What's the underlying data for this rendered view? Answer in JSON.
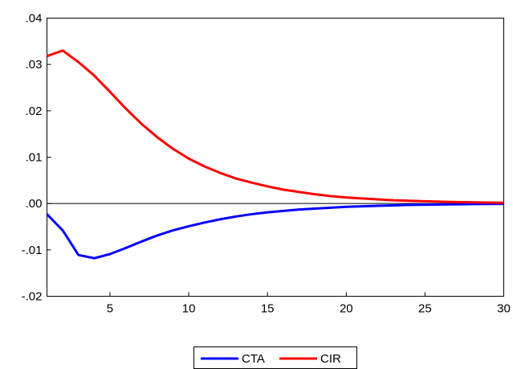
{
  "chart_data": {
    "type": "line",
    "title": "",
    "xlabel": "",
    "ylabel": "",
    "xlim": [
      1,
      30
    ],
    "ylim": [
      -0.02,
      0.04
    ],
    "x_ticks": [
      5,
      10,
      15,
      20,
      25,
      30
    ],
    "x_tick_labels": [
      "5",
      "10",
      "15",
      "20",
      "25",
      "30"
    ],
    "y_ticks": [
      -0.02,
      -0.01,
      0.0,
      0.01,
      0.02,
      0.03,
      0.04
    ],
    "y_tick_labels": [
      "-.02",
      "-.01",
      ".00",
      ".01",
      ".02",
      ".03",
      ".04"
    ],
    "zero_line": true,
    "grid": false,
    "legend_position": "bottom-center",
    "x": [
      1,
      2,
      3,
      4,
      5,
      6,
      7,
      8,
      9,
      10,
      11,
      12,
      13,
      14,
      15,
      16,
      17,
      18,
      19,
      20,
      21,
      22,
      23,
      24,
      25,
      26,
      27,
      28,
      29,
      30
    ],
    "series": [
      {
        "name": "CTA",
        "color": "#0000ff",
        "values": [
          -0.0023,
          -0.0058,
          -0.0111,
          -0.0118,
          -0.0109,
          -0.0096,
          -0.0082,
          -0.0069,
          -0.0058,
          -0.0049,
          -0.0041,
          -0.0034,
          -0.0028,
          -0.0023,
          -0.0019,
          -0.0016,
          -0.0013,
          -0.0011,
          -0.0009,
          -0.0007,
          -0.0006,
          -0.0005,
          -0.0004,
          -0.0003,
          -0.00025,
          -0.0002,
          -0.00016,
          -0.00013,
          -0.0001,
          -8e-05
        ]
      },
      {
        "name": "CIR",
        "color": "#ff0000",
        "values": [
          0.0318,
          0.033,
          0.0305,
          0.0276,
          0.0241,
          0.0205,
          0.0172,
          0.0143,
          0.0118,
          0.0097,
          0.008,
          0.0066,
          0.0054,
          0.0045,
          0.0037,
          0.003,
          0.0025,
          0.002,
          0.0016,
          0.0013,
          0.0011,
          0.0009,
          0.0007,
          0.0006,
          0.00048,
          0.0004,
          0.00032,
          0.00026,
          0.0002,
          0.00016
        ]
      }
    ]
  }
}
